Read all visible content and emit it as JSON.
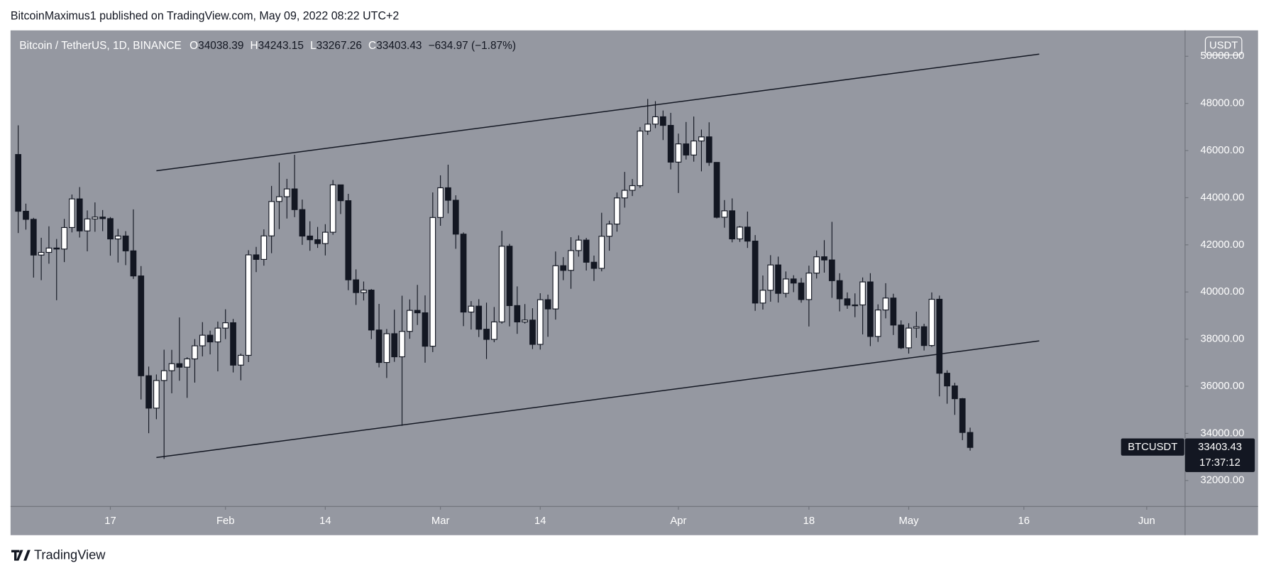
{
  "header": "BitcoinMaximus1 published on TradingView.com, May 09, 2022 08:22 UTC+2",
  "footer": "TradingView",
  "chart_data": {
    "type": "candlestick",
    "title": "Bitcoin / TetherUS, 1D, BINANCE",
    "ohlc_labels": [
      "O",
      "H",
      "L",
      "C"
    ],
    "change": "−634.97 (−1.87%)",
    "currency_button": "USDT",
    "symbol": "BTCUSDT",
    "countdown": "17:37:12",
    "up_color": "#ffffff",
    "down_color": "#131722",
    "x": [
      "2022-01-05",
      "2022-01-06",
      "2022-01-07",
      "2022-01-08",
      "2022-01-09",
      "2022-01-10",
      "2022-01-11",
      "2022-01-12",
      "2022-01-13",
      "2022-01-14",
      "2022-01-15",
      "2022-01-16",
      "2022-01-17",
      "2022-01-18",
      "2022-01-19",
      "2022-01-20",
      "2022-01-21",
      "2022-01-22",
      "2022-01-23",
      "2022-01-24",
      "2022-01-25",
      "2022-01-26",
      "2022-01-27",
      "2022-01-28",
      "2022-01-29",
      "2022-01-30",
      "2022-01-31",
      "2022-02-01",
      "2022-02-02",
      "2022-02-03",
      "2022-02-04",
      "2022-02-05",
      "2022-02-06",
      "2022-02-07",
      "2022-02-08",
      "2022-02-09",
      "2022-02-10",
      "2022-02-11",
      "2022-02-12",
      "2022-02-13",
      "2022-02-14",
      "2022-02-15",
      "2022-02-16",
      "2022-02-17",
      "2022-02-18",
      "2022-02-19",
      "2022-02-20",
      "2022-02-21",
      "2022-02-22",
      "2022-02-23",
      "2022-02-24",
      "2022-02-25",
      "2022-02-26",
      "2022-02-27",
      "2022-02-28",
      "2022-03-01",
      "2022-03-02",
      "2022-03-03",
      "2022-03-04",
      "2022-03-05",
      "2022-03-06",
      "2022-03-07",
      "2022-03-08",
      "2022-03-09",
      "2022-03-10",
      "2022-03-11",
      "2022-03-12",
      "2022-03-13",
      "2022-03-14",
      "2022-03-15",
      "2022-03-16",
      "2022-03-17",
      "2022-03-18",
      "2022-03-19",
      "2022-03-20",
      "2022-03-21",
      "2022-03-22",
      "2022-03-23",
      "2022-03-24",
      "2022-03-25",
      "2022-03-26",
      "2022-03-27",
      "2022-03-28",
      "2022-03-29",
      "2022-03-30",
      "2022-03-31",
      "2022-04-01",
      "2022-04-02",
      "2022-04-03",
      "2022-04-04",
      "2022-04-05",
      "2022-04-06",
      "2022-04-07",
      "2022-04-08",
      "2022-04-09",
      "2022-04-10",
      "2022-04-11",
      "2022-04-12",
      "2022-04-13",
      "2022-04-14",
      "2022-04-15",
      "2022-04-16",
      "2022-04-17",
      "2022-04-18",
      "2022-04-19",
      "2022-04-20",
      "2022-04-21",
      "2022-04-22",
      "2022-04-23",
      "2022-04-24",
      "2022-04-25",
      "2022-04-26",
      "2022-04-27",
      "2022-04-28",
      "2022-04-29",
      "2022-04-30",
      "2022-05-01",
      "2022-05-02",
      "2022-05-03",
      "2022-05-04",
      "2022-05-05",
      "2022-05-06",
      "2022-05-07",
      "2022-05-08",
      "2022-05-09"
    ],
    "open": [
      45833,
      43425,
      43082,
      41566,
      41679,
      41864,
      41822,
      42735,
      43949,
      42591,
      43099,
      43177,
      43113,
      42250,
      42375,
      41744,
      40680,
      36445,
      35071,
      36244,
      36660,
      36958,
      36809,
      37160,
      37716,
      38166,
      37881,
      38466,
      38694,
      36896,
      37311,
      41574,
      41382,
      42380,
      43839,
      44043,
      44372,
      43495,
      42373,
      42217,
      42053,
      42535,
      44544,
      43873,
      40515,
      39974,
      40079,
      38386,
      37008,
      38230,
      37250,
      38327,
      39219,
      39116,
      37699,
      43160,
      44421,
      43892,
      42454,
      39148,
      39398,
      38420,
      37988,
      38730,
      41941,
      39422,
      38729,
      38807,
      37777,
      39671,
      39280,
      41114,
      40917,
      41757,
      42201,
      41262,
      41002,
      42364,
      42882,
      43991,
      44313,
      44511,
      46827,
      47122,
      47434,
      47068,
      45510,
      46283,
      45811,
      46407,
      46581,
      45497,
      43170,
      43444,
      42252,
      42753,
      42158,
      39530,
      40074,
      41147,
      39942,
      40552,
      40378,
      39678,
      40801,
      41493,
      41358,
      40480,
      39709,
      39441,
      39450,
      40426,
      38112,
      39235,
      39742,
      38596,
      37630,
      38468,
      38525,
      37728,
      39690,
      36552,
      36013,
      35472,
      34038.39
    ],
    "high": [
      47070,
      43748,
      43145,
      42300,
      42786,
      42248,
      43100,
      44135,
      44450,
      43460,
      43800,
      43476,
      43180,
      42675,
      42580,
      43505,
      41100,
      36835,
      36499,
      37550,
      37545,
      38919,
      37234,
      38000,
      38720,
      38359,
      38744,
      39265,
      38855,
      37387,
      41772,
      41913,
      42657,
      44500,
      45492,
      44799,
      45821,
      43920,
      43000,
      42760,
      42876,
      44751,
      44549,
      44164,
      40959,
      40444,
      40125,
      39494,
      38429,
      39249,
      39843,
      39683,
      40300,
      39855,
      44225,
      44949,
      45400,
      44102,
      42527,
      39613,
      39693,
      39547,
      39362,
      42594,
      42039,
      40236,
      39486,
      39310,
      39947,
      39887,
      41718,
      41478,
      42325,
      42400,
      42296,
      41544,
      43361,
      43025,
      44220,
      45094,
      44792,
      46999,
      48190,
      48096,
      47700,
      47600,
      46720,
      47213,
      47444,
      46890,
      47200,
      45507,
      43900,
      43970,
      42800,
      43410,
      42414,
      40699,
      41561,
      41500,
      40870,
      40709,
      40595,
      41116,
      41760,
      42199,
      42976,
      40795,
      39980,
      39940,
      40616,
      40797,
      39474,
      40372,
      39925,
      38795,
      38675,
      39167,
      38652,
      39980,
      39845,
      36675,
      36146,
      35500,
      34243.15
    ],
    "low": [
      42500,
      42645,
      40610,
      40501,
      41200,
      39650,
      41268,
      42528,
      42311,
      41725,
      42555,
      42581,
      41540,
      41250,
      41138,
      40553,
      35440,
      34008,
      34601,
      32917,
      35701,
      36234,
      35507,
      36155,
      37268,
      37351,
      36632,
      38000,
      36586,
      36250,
      37026,
      40843,
      41116,
      41645,
      42667,
      43117,
      43174,
      42000,
      41748,
      41870,
      41550,
      42427,
      43307,
      40073,
      39450,
      39639,
      38000,
      36800,
      36350,
      37036,
      34322,
      38014,
      38600,
      37000,
      37450,
      42809,
      43334,
      41832,
      38550,
      38407,
      38088,
      37155,
      37867,
      38656,
      38539,
      38223,
      38660,
      37578,
      37555,
      38098,
      38828,
      40500,
      40135,
      41499,
      40911,
      40467,
      40875,
      41751,
      42560,
      43579,
      44071,
      44422,
      46663,
      46950,
      46445,
      45200,
      44200,
      45620,
      45530,
      45118,
      45353,
      43121,
      42727,
      42107,
      42125,
      41868,
      39200,
      39254,
      39588,
      39551,
      39766,
      39991,
      39546,
      38536,
      40571,
      40820,
      39751,
      39177,
      39285,
      38929,
      38200,
      37702,
      37881,
      38881,
      38175,
      37578,
      37386,
      38052,
      37517,
      37670,
      35571,
      35258,
      34785,
      33713,
      33267.26
    ],
    "close": [
      43425,
      43082,
      41566,
      41679,
      41864,
      41822,
      42735,
      43949,
      42591,
      43099,
      43177,
      43113,
      42250,
      42375,
      41744,
      40680,
      36445,
      35071,
      36244,
      36660,
      36958,
      36809,
      37160,
      37716,
      38166,
      37881,
      38466,
      38694,
      36896,
      37311,
      41574,
      41382,
      42380,
      43839,
      44043,
      44372,
      43495,
      42373,
      42217,
      42053,
      42535,
      44544,
      43873,
      40515,
      39974,
      40079,
      38386,
      37008,
      38230,
      37250,
      38327,
      39219,
      39116,
      37699,
      43160,
      44421,
      43892,
      42454,
      39148,
      39398,
      38420,
      37988,
      38730,
      41941,
      39422,
      38729,
      38807,
      37777,
      39671,
      39280,
      41114,
      40917,
      41757,
      42201,
      41262,
      41002,
      42364,
      42882,
      43991,
      44313,
      44511,
      46827,
      47122,
      47434,
      47068,
      45510,
      46283,
      45811,
      46407,
      46581,
      45497,
      43170,
      43444,
      42252,
      42753,
      42158,
      39530,
      40074,
      41147,
      39942,
      40552,
      40378,
      39678,
      40801,
      41493,
      41358,
      40480,
      39709,
      39441,
      39450,
      40426,
      38112,
      39235,
      39742,
      38596,
      37630,
      38468,
      38525,
      37728,
      39690,
      36552,
      36013,
      35472,
      34038.39,
      33403.43
    ],
    "xlim": [
      "2022-01-04",
      "2022-06-06"
    ],
    "xticks": [
      {
        "value": "2022-01-17",
        "label": "17"
      },
      {
        "value": "2022-02-01",
        "label": "Feb"
      },
      {
        "value": "2022-02-14",
        "label": "14"
      },
      {
        "value": "2022-03-01",
        "label": "Mar"
      },
      {
        "value": "2022-03-14",
        "label": "14"
      },
      {
        "value": "2022-04-01",
        "label": "Apr"
      },
      {
        "value": "2022-04-18",
        "label": "18"
      },
      {
        "value": "2022-05-01",
        "label": "May"
      },
      {
        "value": "2022-05-16",
        "label": "16"
      },
      {
        "value": "2022-06-01",
        "label": "Jun"
      }
    ],
    "ylim": [
      30900,
      51100
    ],
    "yticks": [
      {
        "value": 32000,
        "label": "32000.00"
      },
      {
        "value": 34000,
        "label": "34000.00"
      },
      {
        "value": 36000,
        "label": "36000.00"
      },
      {
        "value": 38000,
        "label": "38000.00"
      },
      {
        "value": 40000,
        "label": "40000.00"
      },
      {
        "value": 42000,
        "label": "42000.00"
      },
      {
        "value": 44000,
        "label": "44000.00"
      },
      {
        "value": 46000,
        "label": "46000.00"
      },
      {
        "value": 48000,
        "label": "48000.00"
      },
      {
        "value": 50000,
        "label": "50000.00"
      }
    ],
    "trendlines": [
      {
        "x": [
          "2022-01-23",
          "2022-05-18"
        ],
        "y": [
          45142,
          50092
        ]
      },
      {
        "x": [
          "2022-01-23",
          "2022-05-18"
        ],
        "y": [
          32975,
          37925
        ]
      }
    ]
  }
}
